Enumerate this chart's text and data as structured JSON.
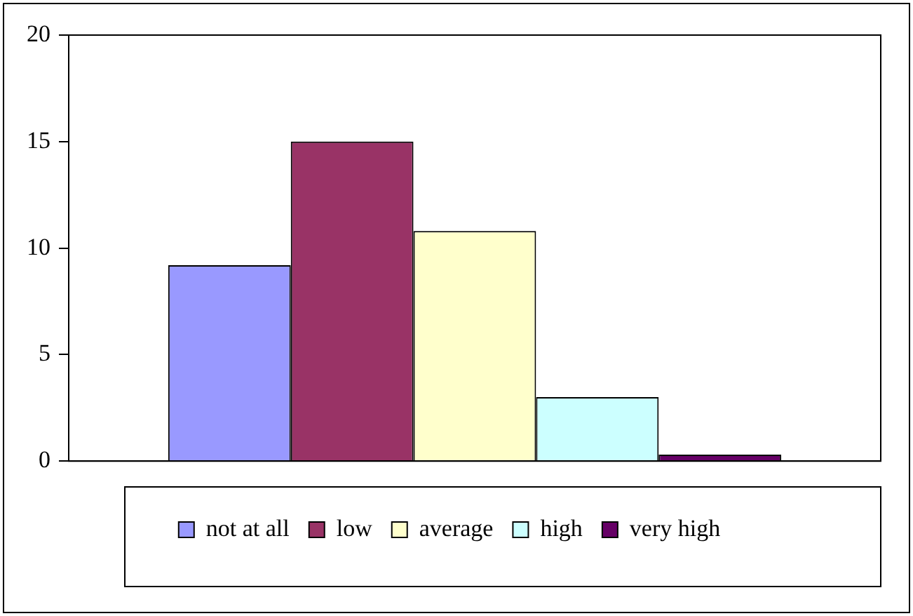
{
  "chart_data": {
    "type": "bar",
    "categories": [
      null
    ],
    "series": [
      {
        "name": "not at all",
        "color": "#9999ff",
        "values": [
          9.2
        ]
      },
      {
        "name": "low",
        "color": "#993366",
        "values": [
          15
        ]
      },
      {
        "name": "average",
        "color": "#ffffcc",
        "values": [
          10.8
        ]
      },
      {
        "name": "high",
        "color": "#ccffff",
        "values": [
          3
        ]
      },
      {
        "name": "very high",
        "color": "#660066",
        "values": [
          0.3
        ]
      }
    ],
    "ylim": [
      0,
      20
    ],
    "yticks": [
      0,
      5,
      10,
      15,
      20
    ],
    "grid": false,
    "legend": "bottom"
  }
}
